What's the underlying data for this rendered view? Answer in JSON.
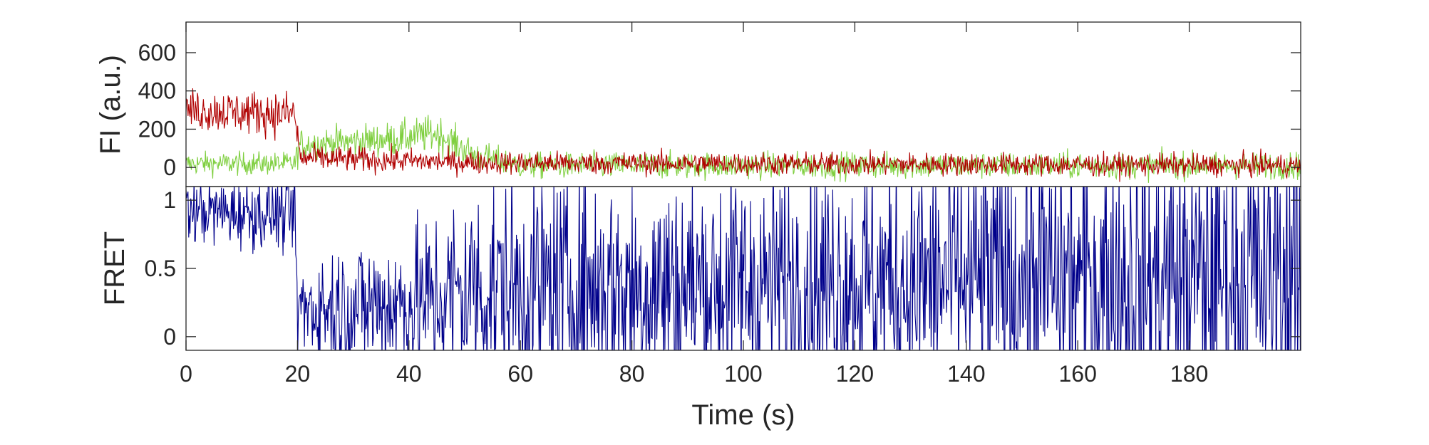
{
  "chart_data": [
    {
      "type": "line",
      "panel": "top",
      "ylabel": "FI (a.u.)",
      "xlim": [
        0,
        200
      ],
      "ylim": [
        -100,
        760
      ],
      "yticks": [
        0,
        200,
        400,
        600
      ],
      "ytick_labels": [
        "0",
        "200",
        "400",
        "600"
      ],
      "grid": false,
      "legend": "none",
      "series": [
        {
          "color": "#b00000",
          "profile": [
            {
              "t": 0,
              "mean": 300,
              "sd": 55
            },
            {
              "t": 19.5,
              "mean": 280,
              "sd": 60
            },
            {
              "t": 20.5,
              "mean": 50,
              "sd": 35
            },
            {
              "t": 52,
              "mean": 25,
              "sd": 30
            },
            {
              "t": 200,
              "mean": 10,
              "sd": 30
            }
          ]
        },
        {
          "color": "#7fcf3f",
          "profile": [
            {
              "t": 0,
              "mean": 20,
              "sd": 30
            },
            {
              "t": 19.5,
              "mean": 20,
              "sd": 30
            },
            {
              "t": 20.5,
              "mean": 120,
              "sd": 40
            },
            {
              "t": 38,
              "mean": 150,
              "sd": 45
            },
            {
              "t": 45,
              "mean": 180,
              "sd": 50
            },
            {
              "t": 52,
              "mean": 60,
              "sd": 40
            },
            {
              "t": 60,
              "mean": 10,
              "sd": 35
            },
            {
              "t": 200,
              "mean": 10,
              "sd": 35
            }
          ]
        }
      ]
    },
    {
      "type": "line",
      "panel": "bottom",
      "xlabel": "Time (s)",
      "ylabel": "FRET",
      "xlim": [
        0,
        200
      ],
      "ylim": [
        -0.1,
        1.1
      ],
      "xticks": [
        0,
        20,
        40,
        60,
        80,
        100,
        120,
        140,
        160,
        180
      ],
      "xtick_labels": [
        "0",
        "20",
        "40",
        "60",
        "80",
        "100",
        "120",
        "140",
        "160",
        "180"
      ],
      "yticks": [
        0,
        0.5,
        1
      ],
      "ytick_labels": [
        "0",
        "0.5",
        "1"
      ],
      "grid": false,
      "legend": "none",
      "series": [
        {
          "color": "#00008b",
          "profile": [
            {
              "t": 0,
              "mean": 0.92,
              "sd": 0.12
            },
            {
              "t": 19.5,
              "mean": 0.9,
              "sd": 0.14
            },
            {
              "t": 20,
              "mean": 0.2,
              "sd": 0.2
            },
            {
              "t": 42,
              "mean": 0.25,
              "sd": 0.3
            },
            {
              "t": 52,
              "mean": 0.35,
              "sd": 0.4
            },
            {
              "t": 200,
              "mean": 0.45,
              "sd": 0.55
            }
          ]
        }
      ]
    }
  ]
}
